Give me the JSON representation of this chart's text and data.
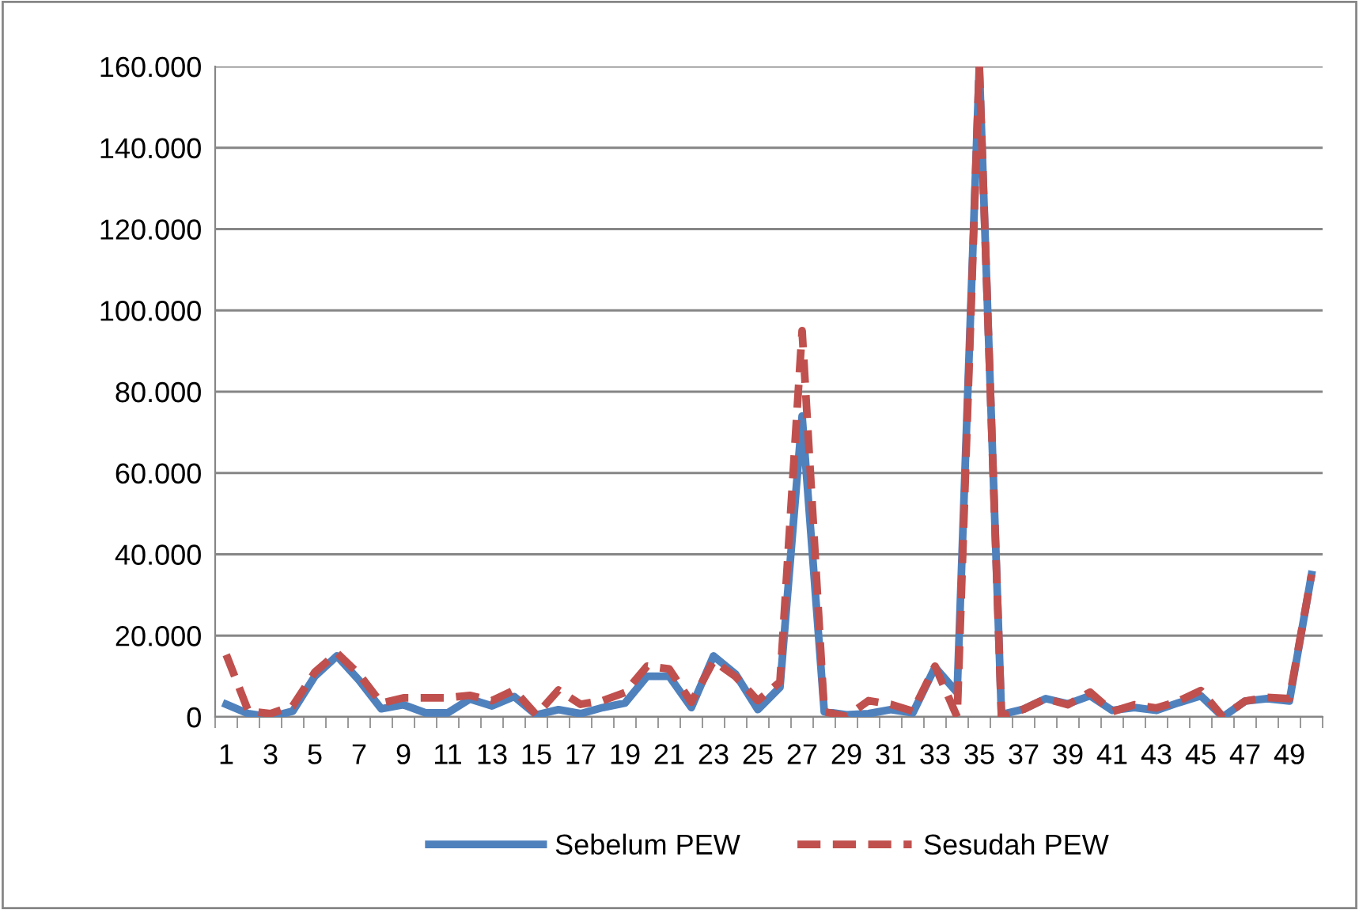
{
  "chart_data": {
    "type": "line",
    "categories": [
      "1",
      null,
      "3",
      null,
      "5",
      null,
      "7",
      null,
      "9",
      null,
      "11",
      null,
      "13",
      null,
      "15",
      null,
      "17",
      null,
      "19",
      null,
      "21",
      null,
      "23",
      null,
      "25",
      null,
      "27",
      null,
      "29",
      null,
      "31",
      null,
      "33",
      null,
      "35",
      null,
      "37",
      null,
      "39",
      null,
      "41",
      null,
      "43",
      null,
      "45",
      null,
      "47",
      null,
      "49",
      null
    ],
    "series": [
      {
        "name": "Sebelum PEW",
        "color": "#4f81bd",
        "line_style": "solid",
        "values": [
          3100,
          800,
          0,
          1400,
          10000,
          15000,
          9000,
          2000,
          3000,
          1000,
          1000,
          4400,
          2700,
          5000,
          500,
          1800,
          800,
          2300,
          3400,
          10000,
          10000,
          2300,
          15000,
          10500,
          1800,
          7300,
          74000,
          1300,
          500,
          800,
          1800,
          1000,
          12200,
          6000,
          160000,
          600,
          1900,
          4500,
          3200,
          5200,
          1600,
          2300,
          1600,
          3500,
          5200,
          0,
          3900,
          4500,
          3900,
          35000
        ]
      },
      {
        "name": "Sesudah PEW",
        "color": "#c0504d",
        "line_style": "dashed",
        "values": [
          15300,
          1400,
          800,
          2700,
          11000,
          15700,
          10500,
          3400,
          4700,
          4700,
          4700,
          5300,
          4000,
          6600,
          500,
          6600,
          3100,
          4000,
          6000,
          12500,
          11800,
          3600,
          13800,
          9900,
          4000,
          8600,
          95000,
          1300,
          100,
          4000,
          3100,
          1400,
          12500,
          0,
          160000,
          100,
          1900,
          4500,
          3000,
          6100,
          1300,
          3000,
          2200,
          3900,
          6500,
          0,
          3900,
          4800,
          4500,
          35000
        ]
      }
    ],
    "ylim": [
      0,
      160000
    ],
    "yticks": [
      0,
      {
        "value": 20000,
        "label": "20.000"
      },
      {
        "value": 40000,
        "label": "40.000"
      },
      {
        "value": 60000,
        "label": "60.000"
      },
      {
        "value": 80000,
        "label": "80.000"
      },
      {
        "value": 100000,
        "label": "100.000"
      },
      {
        "value": 120000,
        "label": "120.000"
      },
      {
        "value": 140000,
        "label": "140.000"
      },
      {
        "value": 160000,
        "label": "160.000"
      }
    ],
    "grid": "y",
    "legend": "bottom",
    "marker": "none"
  }
}
